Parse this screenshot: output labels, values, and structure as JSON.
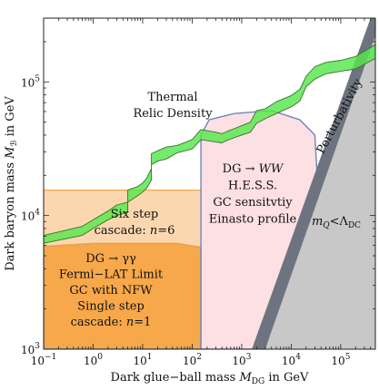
{
  "chart_data": {
    "type": "area",
    "title": "",
    "xlabel": "Dark glue−ball mass M_DG in GeV",
    "ylabel": "Dark baryon mass M_B in GeV",
    "xlabel_parts": {
      "pre": "Dark glue−ball mass ",
      "sym": "M",
      "sub": "DG",
      "post": " in GeV"
    },
    "ylabel_parts": {
      "pre": "Dark baryon mass ",
      "sym": "M",
      "sub": "ℬ",
      "post": " in GeV"
    },
    "x_scale": "log",
    "y_scale": "log",
    "xlim": [
      0.1,
      500000
    ],
    "ylim": [
      1000,
      300000
    ],
    "x_ticks": [
      {
        "value": 0.1,
        "base": "10",
        "exp": "−1"
      },
      {
        "value": 1,
        "base": "10",
        "exp": "0"
      },
      {
        "value": 10,
        "base": "10",
        "exp": "1"
      },
      {
        "value": 100,
        "base": "10",
        "exp": "2"
      },
      {
        "value": 1000,
        "base": "10",
        "exp": "3"
      },
      {
        "value": 10000,
        "base": "10",
        "exp": "4"
      },
      {
        "value": 100000,
        "base": "10",
        "exp": "5"
      }
    ],
    "y_ticks": [
      {
        "value": 1000,
        "base": "10",
        "exp": "3"
      },
      {
        "value": 10000,
        "base": "10",
        "exp": "4"
      },
      {
        "value": 100000,
        "base": "10",
        "exp": "5"
      }
    ],
    "grid": false,
    "colors": {
      "thermal": "#55e84a",
      "fermi": "#f7a84a",
      "six_step": "#fbd7b0",
      "hess": "#fde0e4",
      "hess_edge": "#6f86b8",
      "perturbativity_band": "#6d7480",
      "confinement": "#c8c8c8",
      "boundary": "#5a78b2"
    },
    "regions": [
      {
        "name": "Fermi-LAT",
        "lines": [
          "DG → γγ",
          "Fermi−LAT Limit",
          "GC with NFW",
          "Single step",
          "cascade: n=1"
        ],
        "polygon": [
          [
            0.1,
            1000
          ],
          [
            150,
            1000
          ],
          [
            150,
            5800
          ],
          [
            50,
            6200
          ],
          [
            1,
            6200
          ],
          [
            0.1,
            5900
          ]
        ]
      },
      {
        "name": "Six step cascade",
        "lines": [
          "Six step",
          "cascade: n=6"
        ],
        "polygon": [
          [
            0.1,
            5900
          ],
          [
            1,
            6200
          ],
          [
            50,
            6200
          ],
          [
            150,
            5800
          ],
          [
            150,
            15500
          ],
          [
            0.1,
            15500
          ]
        ]
      },
      {
        "name": "H.E.S.S.",
        "lines": [
          "DG → WW",
          "H.E.S.S.",
          "GC sensitvtiy",
          "Einasto profile"
        ],
        "polygon": [
          [
            150,
            1000
          ],
          [
            3000,
            1000
          ],
          [
            38000,
            9000
          ],
          [
            30000,
            40000
          ],
          [
            15000,
            52000
          ],
          [
            4000,
            61000
          ],
          [
            700,
            58000
          ],
          [
            220,
            52000
          ],
          [
            150,
            40000
          ]
        ]
      },
      {
        "name": "Perturbativity",
        "lines": [
          "Perturbativity"
        ],
        "polygon": [
          [
            1600,
            1000
          ],
          [
            3000,
            1000
          ],
          [
            500000,
            220000
          ],
          [
            500000,
            300000
          ],
          [
            400000,
            300000
          ]
        ]
      },
      {
        "name": "m_Q < Lambda_DC",
        "lines": [
          "m_Q<Λ_DC"
        ],
        "polygon": [
          [
            3000,
            1000
          ],
          [
            500000,
            1000
          ],
          [
            500000,
            220000
          ]
        ]
      }
    ],
    "series": [
      {
        "name": "Thermal Relic Density",
        "lines": [
          "Thermal",
          "Relic Density"
        ],
        "upper": [
          [
            0.1,
            7100
          ],
          [
            0.6,
            8300
          ],
          [
            1,
            9300
          ],
          [
            2,
            10800
          ],
          [
            3,
            12000
          ],
          [
            5,
            12600
          ],
          [
            5,
            15500
          ],
          [
            8,
            16500
          ],
          [
            10,
            17500
          ],
          [
            12,
            19000
          ],
          [
            15,
            22500
          ],
          [
            15,
            29000
          ],
          [
            20,
            30500
          ],
          [
            30,
            32500
          ],
          [
            50,
            33500
          ],
          [
            100,
            37000
          ],
          [
            150,
            44000
          ],
          [
            300,
            42000
          ],
          [
            400,
            41000
          ],
          [
            500,
            42500
          ],
          [
            1000,
            47000
          ],
          [
            1500,
            50000
          ],
          [
            2000,
            61000
          ],
          [
            3000,
            63000
          ],
          [
            5000,
            71000
          ],
          [
            10000,
            79000
          ],
          [
            15000,
            88000
          ],
          [
            20000,
            110000
          ],
          [
            30000,
            130000
          ],
          [
            50000,
            140000
          ],
          [
            100000,
            145000
          ],
          [
            200000,
            155000
          ],
          [
            500000,
            190000
          ]
        ],
        "lower": [
          [
            0.1,
            6200
          ],
          [
            0.6,
            7100
          ],
          [
            1,
            8000
          ],
          [
            2,
            9300
          ],
          [
            3,
            10000
          ],
          [
            5,
            10600
          ],
          [
            5,
            12600
          ],
          [
            8,
            14100
          ],
          [
            10,
            15000
          ],
          [
            12,
            16000
          ],
          [
            15,
            18500
          ],
          [
            15,
            24000
          ],
          [
            20,
            25500
          ],
          [
            30,
            26500
          ],
          [
            50,
            29500
          ],
          [
            100,
            31500
          ],
          [
            150,
            37000
          ],
          [
            300,
            35500
          ],
          [
            400,
            35000
          ],
          [
            500,
            36500
          ],
          [
            1000,
            40000
          ],
          [
            1500,
            42000
          ],
          [
            2000,
            49000
          ],
          [
            3000,
            53000
          ],
          [
            5000,
            58000
          ],
          [
            10000,
            65000
          ],
          [
            15000,
            72000
          ],
          [
            20000,
            92000
          ],
          [
            30000,
            105000
          ],
          [
            50000,
            115000
          ],
          [
            100000,
            120000
          ],
          [
            200000,
            125000
          ],
          [
            500000,
            150000
          ]
        ]
      }
    ]
  }
}
